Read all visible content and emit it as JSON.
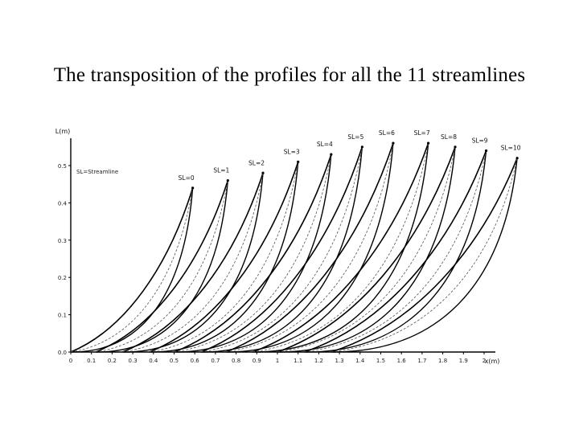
{
  "slide": {
    "title": "The transposition of the profiles for all the 11 streamlines"
  },
  "chart_data": {
    "type": "line",
    "title": "",
    "xlabel": "x(m)",
    "ylabel": "L(m)",
    "legend_text": "SL=Streamline",
    "xlim": [
      0,
      2.05
    ],
    "ylim": [
      0,
      0.62
    ],
    "x_ticks": [
      0,
      0.1,
      0.2,
      0.3,
      0.4,
      0.5,
      0.6,
      0.7,
      0.8,
      0.9,
      1,
      1.1,
      1.2,
      1.3,
      1.4,
      1.5,
      1.6,
      1.7,
      1.8,
      1.9,
      2
    ],
    "x_tick_labels": [
      "0",
      "0.1",
      "0.2",
      "0.3",
      "0.4",
      "0.5",
      "0.6",
      "0.7",
      "0.8",
      "0.9",
      "1",
      "1.1",
      "1.2",
      "1.3",
      "1.4",
      "1.5",
      "1.6",
      "1.7",
      "1.8",
      "1.9",
      "2"
    ],
    "y_ticks": [
      0,
      0.1,
      0.2,
      0.3,
      0.4,
      0.5
    ],
    "y_tick_labels": [
      "0.0",
      "0.1",
      "0.2",
      "0.3",
      "0.4",
      "0.5"
    ],
    "grid": false,
    "series": [
      {
        "name": "SL=0",
        "x_start": 0.0,
        "x_end": 0.59,
        "y_end": 0.44
      },
      {
        "name": "SL=1",
        "x_start": 0.12,
        "x_end": 0.76,
        "y_end": 0.46
      },
      {
        "name": "SL=2",
        "x_start": 0.25,
        "x_end": 0.93,
        "y_end": 0.48
      },
      {
        "name": "SL=3",
        "x_start": 0.38,
        "x_end": 1.1,
        "y_end": 0.51
      },
      {
        "name": "SL=4",
        "x_start": 0.5,
        "x_end": 1.26,
        "y_end": 0.53
      },
      {
        "name": "SL=5",
        "x_start": 0.63,
        "x_end": 1.41,
        "y_end": 0.55
      },
      {
        "name": "SL=6",
        "x_start": 0.75,
        "x_end": 1.56,
        "y_end": 0.56
      },
      {
        "name": "SL=7",
        "x_start": 0.88,
        "x_end": 1.73,
        "y_end": 0.56
      },
      {
        "name": "SL=8",
        "x_start": 1.0,
        "x_end": 1.86,
        "y_end": 0.55
      },
      {
        "name": "SL=9",
        "x_start": 1.13,
        "x_end": 2.01,
        "y_end": 0.54
      },
      {
        "name": "SL=10",
        "x_start": 1.26,
        "x_end": 2.16,
        "y_end": 0.52
      }
    ]
  }
}
